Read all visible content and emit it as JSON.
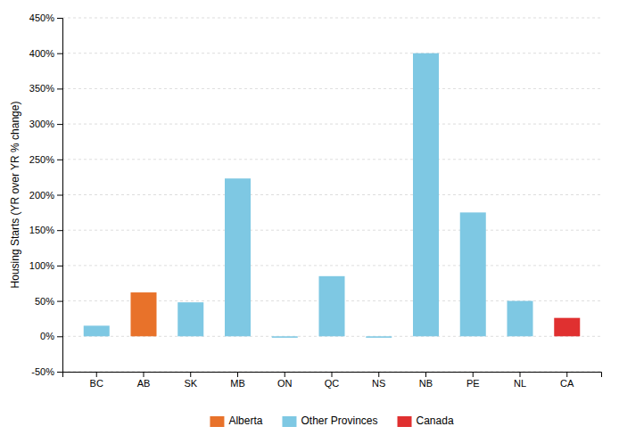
{
  "chart_data": {
    "type": "bar",
    "categories": [
      "BC",
      "AB",
      "SK",
      "MB",
      "ON",
      "QC",
      "NS",
      "NB",
      "PE",
      "NL",
      "CA"
    ],
    "values": [
      15,
      62,
      48,
      223,
      -2,
      85,
      -2,
      400,
      175,
      50,
      26
    ],
    "colors": [
      "#7ec8e3",
      "#e8722a",
      "#7ec8e3",
      "#7ec8e3",
      "#7ec8e3",
      "#7ec8e3",
      "#7ec8e3",
      "#7ec8e3",
      "#7ec8e3",
      "#7ec8e3",
      "#e03030"
    ],
    "ylabel": "Housing Starts (YR over YR % change)",
    "ylim": [
      -50,
      450
    ],
    "yticks": [
      {
        "value": -50,
        "label": "-50%"
      },
      {
        "value": 0,
        "label": "0%"
      },
      {
        "value": 50,
        "label": "50%"
      },
      {
        "value": 100,
        "label": "100%"
      },
      {
        "value": 150,
        "label": "150%"
      },
      {
        "value": 200,
        "label": "200%"
      },
      {
        "value": 250,
        "label": "250%"
      },
      {
        "value": 300,
        "label": "300%"
      },
      {
        "value": 350,
        "label": "350%"
      },
      {
        "value": 400,
        "label": "400%"
      },
      {
        "value": 450,
        "label": "450%"
      }
    ],
    "grid": true,
    "legend": "bottom",
    "legend_entries": [
      {
        "name": "Alberta",
        "color": "#e8722a"
      },
      {
        "name": "Other Provinces",
        "color": "#7ec8e3"
      },
      {
        "name": "Canada",
        "color": "#e03030"
      }
    ]
  }
}
